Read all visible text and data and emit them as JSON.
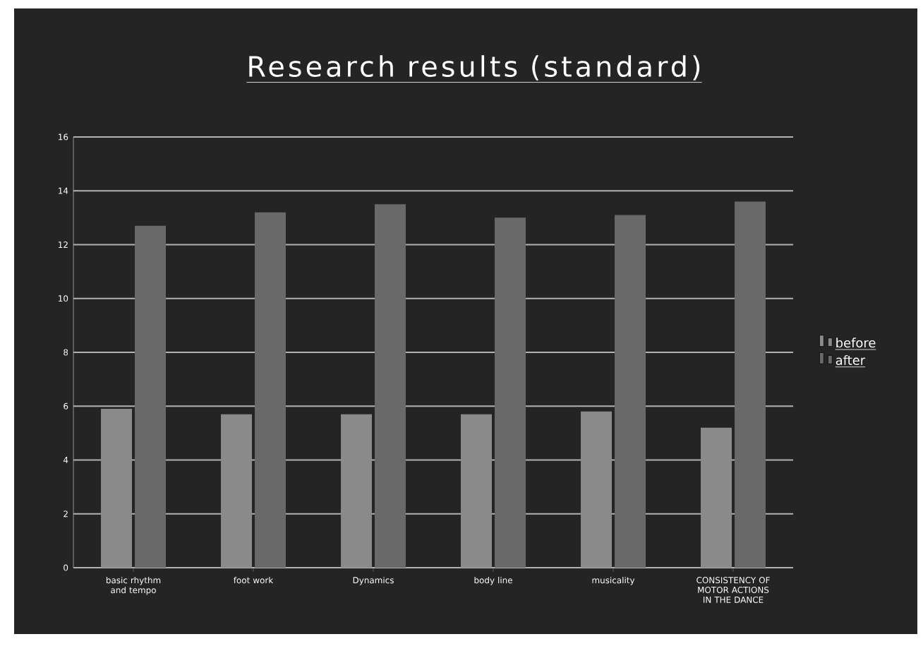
{
  "chart_data": {
    "type": "bar",
    "title": "Research results (standard)",
    "categories": [
      "basic rhythm and tempo",
      "foot work",
      "Dynamics",
      "body line",
      "musicality",
      "CONSISTENCY OF MOTOR ACTIONS IN THE DANCE"
    ],
    "series": [
      {
        "name": "before",
        "color": "#8a8a8a",
        "values": [
          5.9,
          5.7,
          5.7,
          5.7,
          5.8,
          5.2
        ]
      },
      {
        "name": "after",
        "color": "#696969",
        "values": [
          12.7,
          13.2,
          13.5,
          13.0,
          13.1,
          13.6
        ]
      }
    ],
    "ylim": [
      0,
      16
    ],
    "yticks": [
      0,
      2,
      4,
      6,
      8,
      10,
      12,
      14,
      16
    ],
    "grid": "y",
    "legend": "right"
  }
}
